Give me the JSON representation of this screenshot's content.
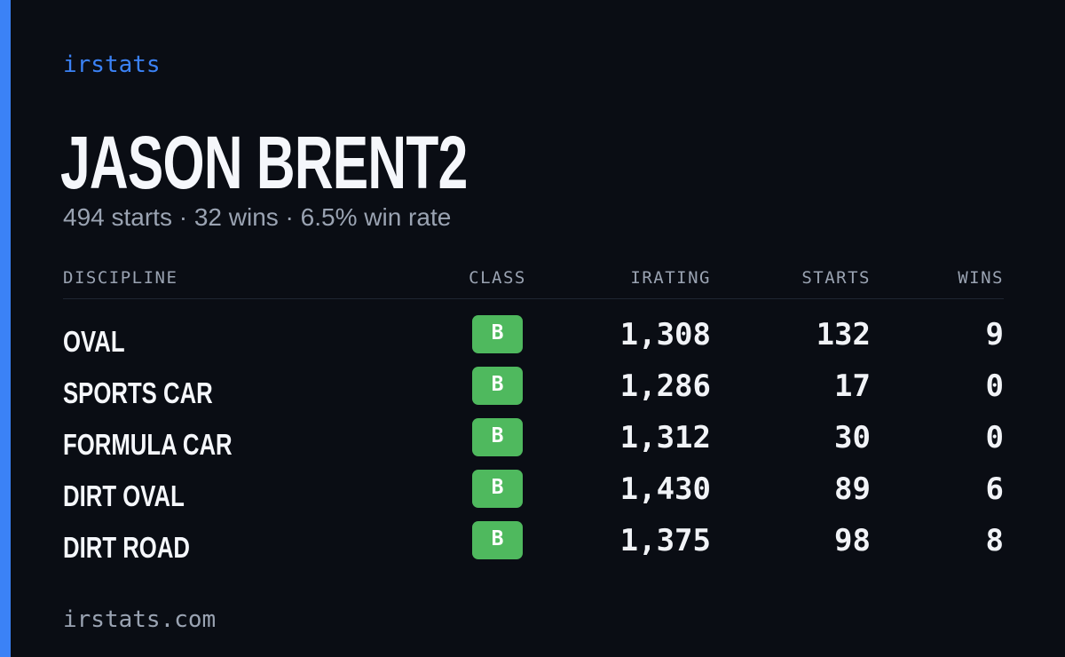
{
  "colors": {
    "accent": "#3b82f6",
    "background": "#0a0d14",
    "class_badge": "#4fb95e",
    "muted_text": "#9aa3b2"
  },
  "brand": {
    "name": "irstats"
  },
  "driver": {
    "name": "JASON BRENT2",
    "summary": "494 starts · 32 wins · 6.5% win rate"
  },
  "table": {
    "headers": {
      "discipline": "DISCIPLINE",
      "class": "CLASS",
      "irating": "IRATING",
      "starts": "STARTS",
      "wins": "WINS"
    },
    "rows": [
      {
        "discipline": "OVAL",
        "class": "B",
        "irating": "1,308",
        "starts": "132",
        "wins": "9"
      },
      {
        "discipline": "SPORTS CAR",
        "class": "B",
        "irating": "1,286",
        "starts": "17",
        "wins": "0"
      },
      {
        "discipline": "FORMULA CAR",
        "class": "B",
        "irating": "1,312",
        "starts": "30",
        "wins": "0"
      },
      {
        "discipline": "DIRT OVAL",
        "class": "B",
        "irating": "1,430",
        "starts": "89",
        "wins": "6"
      },
      {
        "discipline": "DIRT ROAD",
        "class": "B",
        "irating": "1,375",
        "starts": "98",
        "wins": "8"
      }
    ]
  },
  "footer": {
    "domain": "irstats.com"
  }
}
